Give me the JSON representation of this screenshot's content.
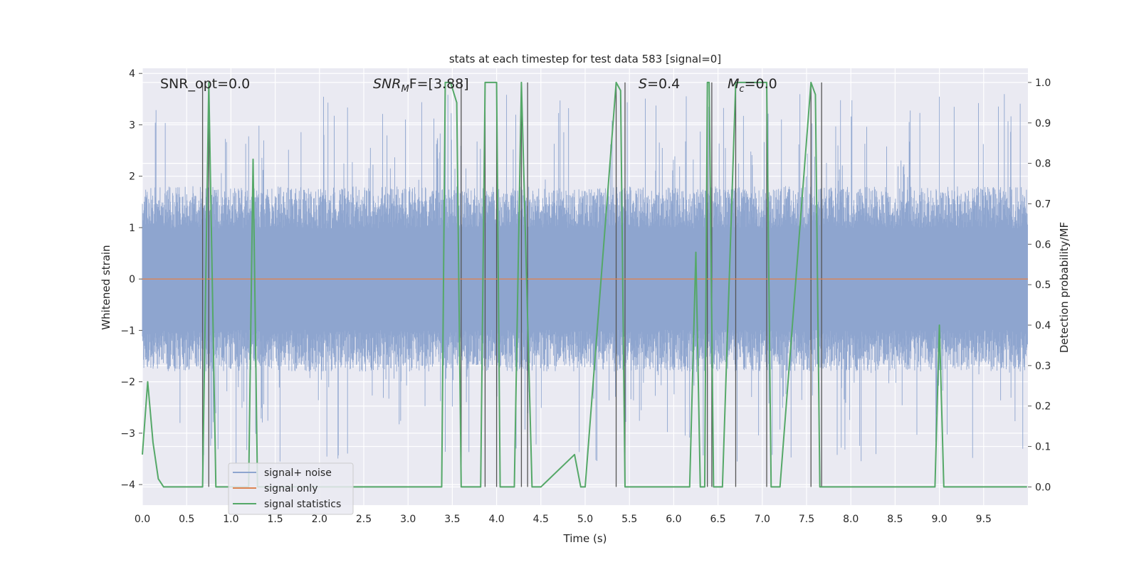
{
  "chart_data": {
    "type": "line",
    "title": "stats at each timestep for test data 583 [signal=0]",
    "xlabel": "Time (s)",
    "ylabel_left": "Whitened strain",
    "ylabel_right": "Detection probability/MF",
    "xlim": [
      0.0,
      10.0
    ],
    "ylim_left": [
      -4.4,
      4.1
    ],
    "ylim_right": [
      -0.045,
      1.035
    ],
    "x_ticks": [
      "0.0",
      "0.5",
      "1.0",
      "1.5",
      "2.0",
      "2.5",
      "3.0",
      "3.5",
      "4.0",
      "4.5",
      "5.0",
      "5.5",
      "6.0",
      "6.5",
      "7.0",
      "7.5",
      "8.0",
      "8.5",
      "9.0",
      "9.5"
    ],
    "y_ticks_left": [
      "4",
      "3",
      "2",
      "1",
      "0",
      "−1",
      "−2",
      "−3",
      "−4"
    ],
    "y_ticks_right": [
      "1.0",
      "0.9",
      "0.8",
      "0.7",
      "0.6",
      "0.5",
      "0.4",
      "0.3",
      "0.2",
      "0.1",
      "0.0"
    ],
    "grid": true,
    "legend_position": "lower-left",
    "annotations": {
      "snr_opt": "SNR_opt=0.0",
      "snr_mf_main": "SNR",
      "snr_mf_sub": "M",
      "snr_mf_rest": "F=[3.88]",
      "s_main": "S",
      "s_rest": "=0.4",
      "mc_main": "M",
      "mc_sub": "c",
      "mc_rest": "=0.0"
    },
    "series": [
      {
        "name": "signal+ noise",
        "color": "#8ea5cf",
        "typical_range": [
          -1.8,
          1.8
        ],
        "max_excursion": [
          -3.6,
          3.6
        ]
      },
      {
        "name": "signal only",
        "color": "#dd8452",
        "value": 0.0
      },
      {
        "name": "signal statistics",
        "color": "#55a868",
        "x": [
          0.0,
          0.06,
          0.12,
          0.18,
          0.24,
          0.68,
          0.75,
          0.83,
          0.88,
          1.2,
          1.25,
          1.3,
          1.35,
          3.38,
          3.42,
          3.48,
          3.55,
          3.6,
          3.65,
          3.82,
          3.87,
          3.9,
          4.0,
          4.04,
          4.1,
          4.15,
          4.2,
          4.28,
          4.4,
          4.45,
          4.5,
          4.88,
          4.95,
          5.0,
          5.35,
          5.4,
          5.45,
          5.5,
          6.18,
          6.25,
          6.3,
          6.35,
          6.38,
          6.4,
          6.45,
          6.5,
          6.55,
          6.7,
          6.75,
          7.05,
          7.1,
          7.15,
          7.2,
          7.55,
          7.6,
          7.65,
          7.7,
          7.75,
          8.5,
          8.95,
          9.0,
          9.05,
          9.1,
          9.99
        ],
        "y": [
          0.08,
          0.26,
          0.11,
          0.02,
          0.0,
          0.0,
          1.0,
          0.0,
          0.0,
          0.0,
          0.81,
          0.0,
          0.0,
          0.0,
          1.0,
          1.0,
          0.95,
          0.0,
          0.0,
          0.0,
          1.0,
          1.0,
          1.0,
          0.0,
          0.0,
          0.0,
          0.0,
          1.0,
          0.0,
          0.0,
          0.0,
          0.08,
          0.0,
          0.0,
          1.0,
          0.98,
          0.0,
          0.0,
          0.0,
          0.58,
          0.0,
          0.0,
          1.0,
          1.0,
          0.0,
          0.0,
          0.0,
          1.0,
          1.0,
          1.0,
          0.0,
          0.0,
          0.0,
          1.0,
          0.97,
          0.0,
          0.0,
          0.0,
          0.0,
          0.0,
          0.4,
          0.0,
          0.0,
          0.0
        ]
      }
    ],
    "vertical_markers": {
      "color": "#555555",
      "x": [
        0.68,
        0.75,
        3.6,
        3.87,
        4.0,
        4.28,
        4.35,
        5.35,
        5.45,
        6.38,
        6.43,
        6.7,
        7.05,
        7.55,
        7.67
      ]
    }
  }
}
